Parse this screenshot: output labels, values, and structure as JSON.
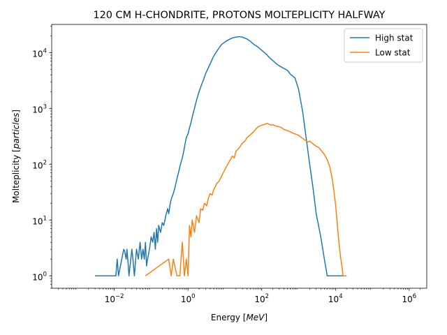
{
  "chart_data": {
    "type": "line",
    "title": "120 CM H-CHONDRITE, PROTONS MOLTEPLICITY HALFWAY",
    "xlabel": {
      "prefix": "Energy [",
      "italic": "MeV",
      "suffix": "]"
    },
    "ylabel": {
      "prefix": "Molteplicity [",
      "italic": "particles",
      "suffix": "]"
    },
    "x_scale": "log",
    "y_scale": "log",
    "xlim": [
      0.0002,
      3000000
    ],
    "ylim": [
      0.6,
      32000
    ],
    "x_ticks": [
      {
        "value": 0.01,
        "base": "10",
        "exp": "−2"
      },
      {
        "value": 1,
        "base": "10",
        "exp": "0"
      },
      {
        "value": 100,
        "base": "10",
        "exp": "2"
      },
      {
        "value": 10000,
        "base": "10",
        "exp": "4"
      },
      {
        "value": 1000000,
        "base": "10",
        "exp": "6"
      }
    ],
    "y_ticks": [
      {
        "value": 1,
        "base": "10",
        "exp": "0"
      },
      {
        "value": 10,
        "base": "10",
        "exp": "1"
      },
      {
        "value": 100,
        "base": "10",
        "exp": "2"
      },
      {
        "value": 1000,
        "base": "10",
        "exp": "3"
      },
      {
        "value": 10000,
        "base": "10",
        "exp": "4"
      }
    ],
    "grid": false,
    "legend_position": "top-right",
    "series": [
      {
        "name": "High stat",
        "color": "#1f77b4",
        "x": [
          0.003,
          0.0032,
          0.011,
          0.012,
          0.013,
          0.018,
          0.019,
          0.021,
          0.022,
          0.024,
          0.025,
          0.03,
          0.032,
          0.035,
          0.04,
          0.045,
          0.05,
          0.055,
          0.06,
          0.065,
          0.07,
          0.075,
          0.08,
          0.09,
          0.1,
          0.11,
          0.12,
          0.13,
          0.14,
          0.15,
          0.16,
          0.18,
          0.2,
          0.22,
          0.25,
          0.28,
          0.3,
          0.33,
          0.36,
          0.4,
          0.45,
          0.5,
          0.55,
          0.6,
          0.65,
          0.7,
          0.75,
          0.8,
          0.85,
          0.9,
          1.0,
          1.1,
          1.2,
          1.3,
          1.4,
          1.5,
          1.7,
          2.0,
          2.3,
          2.6,
          3.0,
          3.5,
          4.0,
          4.5,
          5.0,
          6.0,
          7.0,
          8.0,
          10,
          13,
          16,
          20,
          25,
          30,
          40,
          50,
          60,
          80,
          100,
          130,
          160,
          200,
          250,
          300,
          400,
          500,
          600,
          800,
          1000,
          1300,
          1600,
          2000,
          2500,
          3000,
          4000,
          5000,
          6000,
          8000,
          10000,
          11000,
          12000,
          13000,
          14000,
          15000,
          16000,
          17000,
          18000,
          19000,
          20000
        ],
        "values": [
          1,
          1,
          1,
          2,
          1,
          3,
          2.8,
          2,
          3,
          1.5,
          1,
          3,
          2,
          1,
          3,
          2,
          4,
          2,
          3,
          2,
          4,
          1.5,
          2,
          3,
          5,
          4,
          6,
          3,
          7,
          4,
          8,
          6,
          9,
          8,
          12,
          16,
          13,
          20,
          25,
          30,
          40,
          55,
          70,
          90,
          110,
          130,
          160,
          200,
          250,
          300,
          350,
          450,
          550,
          700,
          850,
          1000,
          1400,
          2000,
          2600,
          3200,
          4200,
          5200,
          6300,
          7500,
          8700,
          10500,
          12200,
          13800,
          15500,
          17200,
          18300,
          19000,
          19300,
          18900,
          17500,
          15800,
          14200,
          12500,
          11000,
          9500,
          8200,
          7200,
          6300,
          5800,
          5200,
          4800,
          4100,
          3500,
          2200,
          850,
          300,
          100,
          35,
          13,
          5,
          2,
          1,
          1,
          1,
          1,
          1,
          1,
          1,
          1,
          1,
          1,
          1,
          1,
          1
        ]
      },
      {
        "name": "Low stat",
        "color": "#ff7f0e",
        "x": [
          0.07,
          0.3,
          0.35,
          0.4,
          0.5,
          0.6,
          0.7,
          0.8,
          0.9,
          1.0,
          1.1,
          1.2,
          1.3,
          1.5,
          1.7,
          2.0,
          2.2,
          2.5,
          2.8,
          3.2,
          3.6,
          4.0,
          4.5,
          5.0,
          6.0,
          7.0,
          8.0,
          9.0,
          10,
          12,
          14,
          16,
          18,
          20,
          25,
          30,
          35,
          40,
          50,
          60,
          70,
          80,
          100,
          120,
          140,
          160,
          180,
          200,
          250,
          300,
          350,
          400,
          500,
          600,
          700,
          800,
          1000,
          1200,
          1500,
          1800,
          2000,
          2500,
          3000,
          3500,
          4000,
          5000,
          6000,
          7000,
          8000,
          9000,
          10000,
          11000,
          12000,
          13000,
          14000,
          15000,
          16000,
          17000,
          18000,
          19000,
          20000
        ],
        "values": [
          1,
          2,
          1,
          2,
          1,
          1,
          4,
          1,
          2,
          1,
          8,
          5,
          10,
          6,
          12,
          9,
          16,
          15,
          20,
          18,
          25,
          30,
          28,
          35,
          45,
          50,
          60,
          70,
          80,
          100,
          120,
          140,
          130,
          170,
          200,
          240,
          260,
          300,
          340,
          380,
          430,
          470,
          500,
          520,
          540,
          520,
          500,
          510,
          480,
          470,
          450,
          420,
          400,
          380,
          360,
          350,
          330,
          300,
          270,
          250,
          260,
          230,
          210,
          200,
          180,
          150,
          120,
          90,
          60,
          35,
          20,
          10,
          5,
          3,
          2,
          1.5,
          1,
          1,
          1,
          1,
          1
        ]
      }
    ]
  }
}
